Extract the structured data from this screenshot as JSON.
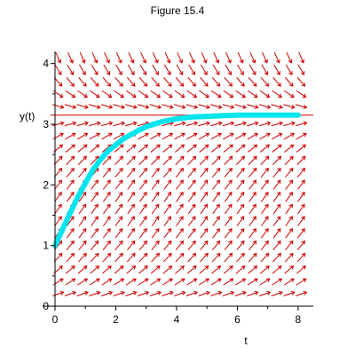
{
  "chart_data": {
    "type": "line",
    "title": "Figure 15.4",
    "xlabel": "t",
    "ylabel": "y(t)",
    "xlim": [
      0,
      8.5
    ],
    "ylim": [
      0,
      4.2
    ],
    "x_ticks": [
      0,
      2,
      4,
      6,
      8
    ],
    "y_ticks": [
      0,
      1,
      2,
      3,
      4
    ],
    "grid": false,
    "equilibrium_lines": [
      3.15
    ],
    "equilibrium_line_color": "#cc0000",
    "direction_field": {
      "arrow_color": "#cc0000",
      "t_values": [
        0.1,
        0.5,
        0.9,
        1.3,
        1.7,
        2.1,
        2.5,
        2.9,
        3.3,
        3.7,
        4.1,
        4.5,
        4.9,
        5.3,
        5.7,
        6.1,
        6.5,
        6.9,
        7.3,
        7.7,
        8.1
      ],
      "y_values": [
        0.2,
        0.4,
        0.6,
        0.8,
        1.0,
        1.2,
        1.4,
        1.6,
        1.8,
        2.0,
        2.2,
        2.4,
        2.6,
        2.8,
        3.0,
        3.3,
        3.5,
        3.7,
        3.9,
        4.1
      ]
    },
    "series": [
      {
        "color": "#00e5ee",
        "x": [
          0,
          0.25,
          0.5,
          0.75,
          1.0,
          1.25,
          1.5,
          1.75,
          2.0,
          2.25,
          2.5,
          2.75,
          3.0,
          3.5,
          4.0,
          4.5,
          5.0,
          5.5,
          6.0,
          6.5,
          7.0,
          7.5,
          8.0
        ],
        "y": [
          1.0,
          1.27,
          1.54,
          1.8,
          2.03,
          2.25,
          2.42,
          2.56,
          2.66,
          2.76,
          2.83,
          2.9,
          2.96,
          3.04,
          3.09,
          3.12,
          3.13,
          3.14,
          3.15,
          3.15,
          3.15,
          3.15,
          3.15
        ]
      }
    ]
  }
}
